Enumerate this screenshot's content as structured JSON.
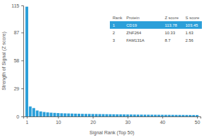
{
  "chart_data": {
    "type": "bar",
    "x_label": "Signal Rank (Top 50)",
    "y_label": "Strength of Signal (Z score)",
    "x": [
      1,
      2,
      3,
      4,
      5,
      6,
      7,
      8,
      9,
      10,
      11,
      12,
      13,
      14,
      15,
      16,
      17,
      18,
      19,
      20,
      21,
      22,
      23,
      24,
      25,
      26,
      27,
      28,
      29,
      30,
      31,
      32,
      33,
      34,
      35,
      36,
      37,
      38,
      39,
      40,
      41,
      42,
      43,
      44,
      45,
      46,
      47,
      48,
      49,
      50
    ],
    "values": [
      113.78,
      10.33,
      8.7,
      6.14,
      5.2,
      4.6,
      4.2,
      3.9,
      3.7,
      3.5,
      3.3,
      3.2,
      3.1,
      3.0,
      2.9,
      2.8,
      2.7,
      2.65,
      2.6,
      2.55,
      2.5,
      2.45,
      2.4,
      2.35,
      2.3,
      2.25,
      2.2,
      2.15,
      2.1,
      2.05,
      2.0,
      1.95,
      1.9,
      1.88,
      1.85,
      1.82,
      1.8,
      1.78,
      1.75,
      1.72,
      1.7,
      1.68,
      1.65,
      1.62,
      1.6,
      1.58,
      1.55,
      1.52,
      1.5,
      1.48
    ],
    "color": "#2b9fd9",
    "xlim": [
      0,
      51
    ],
    "xticks": [
      1,
      10,
      20,
      30,
      40,
      50
    ],
    "ylim": [
      0,
      115
    ],
    "yticks": [
      0,
      29,
      58,
      87,
      115
    ],
    "grid": false,
    "table": {
      "columns": [
        "Rank",
        "Protein",
        "Z score",
        "S score"
      ],
      "rows": [
        [
          1,
          "CD19",
          113.78,
          103.45
        ],
        [
          2,
          "ZNF264",
          10.33,
          1.63
        ],
        [
          3,
          "FAM131A",
          8.7,
          2.56
        ]
      ]
    }
  }
}
